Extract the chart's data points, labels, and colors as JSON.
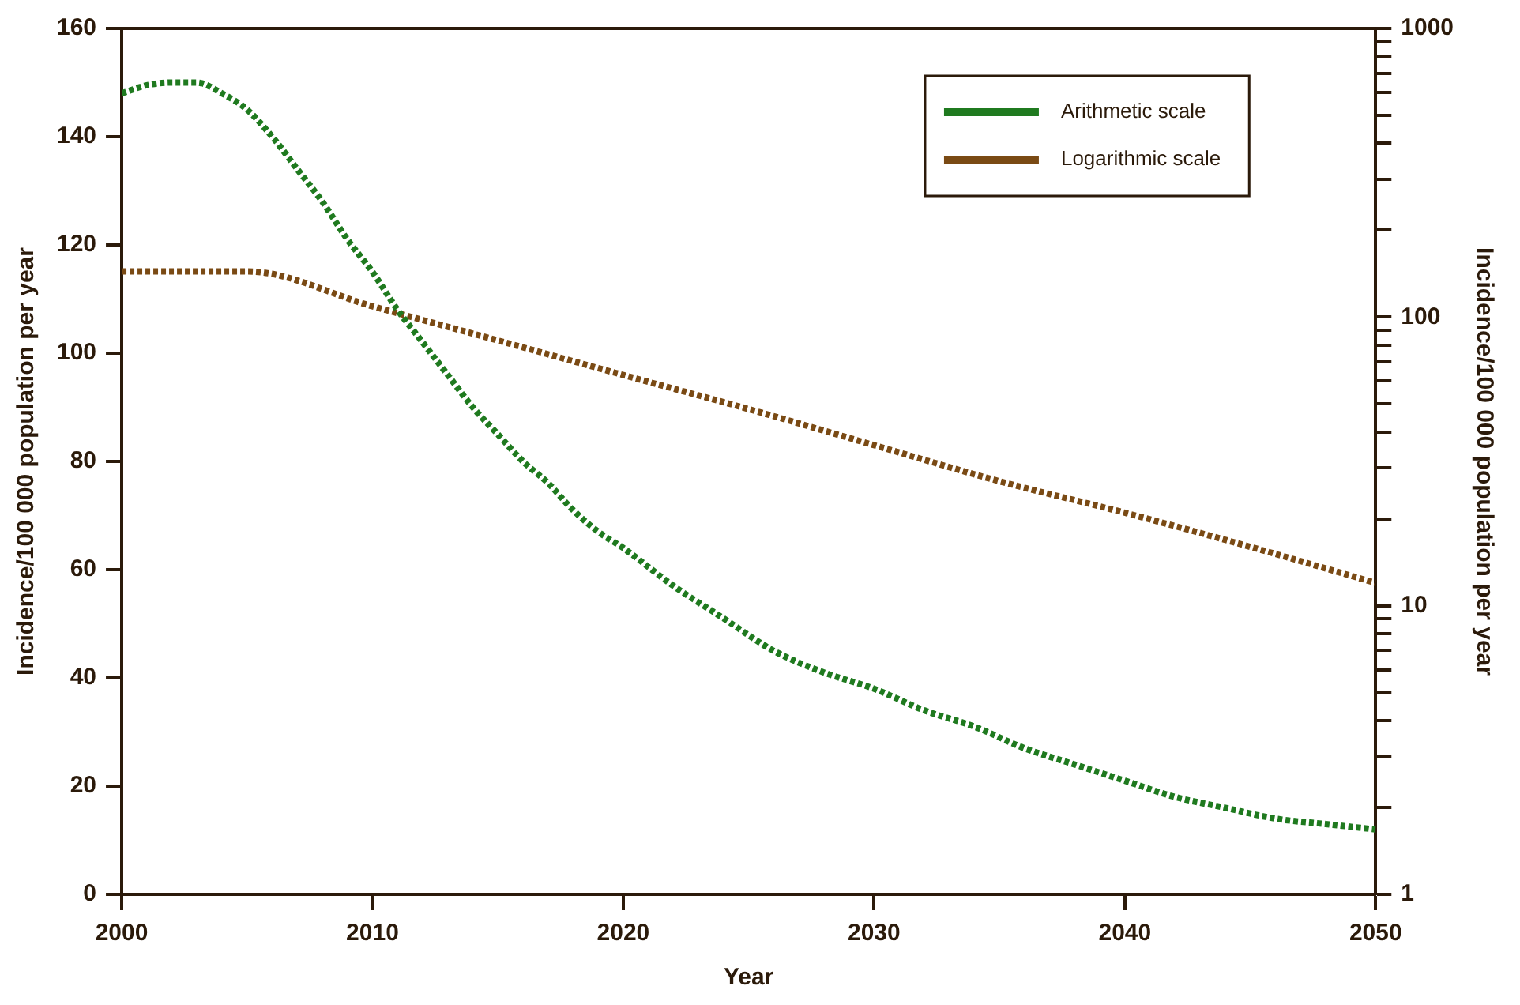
{
  "chart_data": {
    "type": "line",
    "xlabel": "Year",
    "ylabel": "Incidence/100 000 population per year",
    "y2label": "Incidence/100 000 population per year",
    "xlim": [
      2000,
      2050
    ],
    "xticks": [
      2000,
      2010,
      2020,
      2030,
      2040,
      2050
    ],
    "ylim": [
      0,
      160
    ],
    "yticks": [
      0,
      20,
      40,
      60,
      80,
      100,
      120,
      140,
      160
    ],
    "y2lim": [
      1,
      1000
    ],
    "y2ticks": [
      1,
      {
        "value": 2,
        "label": null
      },
      {
        "value": 3,
        "label": null
      },
      {
        "value": 4,
        "label": null
      },
      {
        "value": 5,
        "label": null
      },
      {
        "value": 6,
        "label": null
      },
      {
        "value": 7,
        "label": null
      },
      {
        "value": 8,
        "label": null
      },
      {
        "value": 9,
        "label": null
      },
      10,
      {
        "value": 20,
        "label": null
      },
      {
        "value": 30,
        "label": null
      },
      {
        "value": 40,
        "label": null
      },
      {
        "value": 50,
        "label": null
      },
      {
        "value": 60,
        "label": null
      },
      {
        "value": 70,
        "label": null
      },
      {
        "value": 80,
        "label": null
      },
      {
        "value": 90,
        "label": null
      },
      100,
      {
        "value": 200,
        "label": null
      },
      {
        "value": 300,
        "label": null
      },
      {
        "value": 400,
        "label": null
      },
      {
        "value": 500,
        "label": null
      },
      {
        "value": 600,
        "label": null
      },
      {
        "value": 700,
        "label": null
      },
      {
        "value": 800,
        "label": null
      },
      {
        "value": 900,
        "label": null
      },
      1000
    ],
    "log": "y2",
    "grid": false,
    "legend": "top right",
    "line_style": "dotted",
    "marker": "none",
    "series": [
      {
        "name": "Arithmetic scale",
        "color": "#1f7a1f",
        "x": [
          2000,
          2001,
          2002,
          2003,
          2004,
          2005,
          2006,
          2007,
          2008,
          2009,
          2010,
          2011,
          2012,
          2013,
          2014,
          2015,
          2016,
          2017,
          2018,
          2019,
          2020,
          2022,
          2024,
          2026,
          2028,
          2030,
          2032,
          2034,
          2036,
          2038,
          2040,
          2042,
          2044,
          2046,
          2048,
          2050
        ],
        "values": [
          148,
          149.5,
          150,
          150,
          148,
          145,
          140,
          134,
          128,
          121,
          115,
          108,
          102,
          96,
          90,
          85,
          80,
          76,
          71,
          67,
          64,
          57,
          51,
          45,
          41,
          38,
          34,
          31,
          27,
          24,
          21,
          18,
          16,
          14,
          13,
          12
        ]
      },
      {
        "name": "Logarithmic scale",
        "color": "#7a4a14",
        "axis": "y2",
        "x": [
          2000,
          2005,
          2010,
          2015,
          2020,
          2025,
          2030,
          2035,
          2040,
          2045,
          2050
        ],
        "values": [
          144,
          144,
          109,
          83,
          63,
          48,
          36,
          27,
          21,
          16,
          12
        ]
      }
    ]
  }
}
